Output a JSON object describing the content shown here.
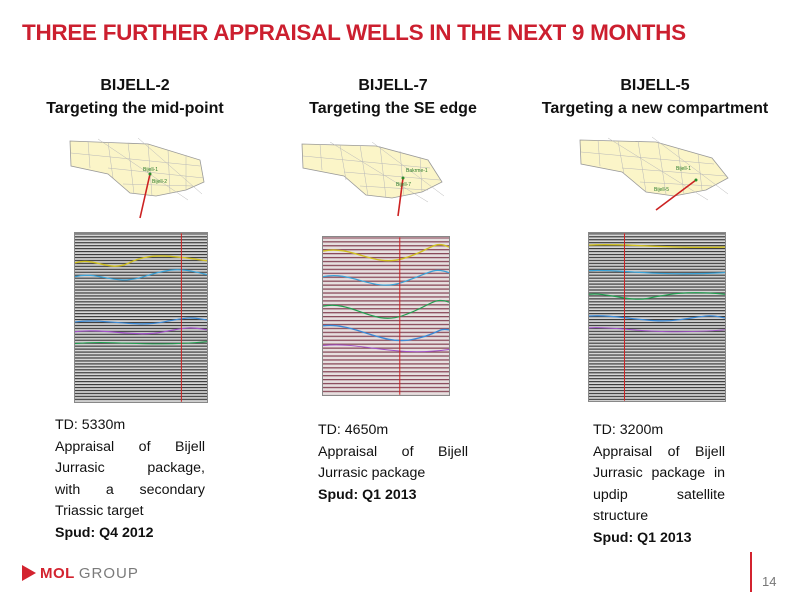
{
  "slide": {
    "title": "THREE FURTHER APPRAISAL WELLS IN THE NEXT 9 MONTHS",
    "page_number": "14"
  },
  "brand": {
    "part1": "MOL",
    "part2": "GROUP",
    "accent": "#d3232f"
  },
  "wells": [
    {
      "name": "BIJELL-2",
      "subtitle": "Targeting the mid-point",
      "td": "TD: 5330m",
      "description_lines": [
        "Appraisal of Bijell",
        "Jurrasic package,",
        "with a secondary",
        "Triassic target"
      ],
      "spud": "Spud: Q4 2012",
      "map_labels": [
        "Bijell-1",
        "Bijell-2"
      ]
    },
    {
      "name": "BIJELL-7",
      "subtitle": "Targeting the SE edge",
      "td": "TD: 4650m",
      "description_lines": [
        "Appraisal of Bijell",
        "Jurrasic package"
      ],
      "spud": "Spud:  Q1 2013",
      "map_labels": [
        "Bakrme-1",
        "Bijell-7"
      ]
    },
    {
      "name": "BIJELL-5",
      "subtitle": "Targeting a new compartment",
      "td": "TD: 3200m",
      "description_lines": [
        "Appraisal of Bijell",
        "Jurrasic package in",
        "updip satellite",
        "structure"
      ],
      "spud": "Spud: Q1 2013",
      "map_labels": [
        "Bijell-1",
        "Bijell-5"
      ]
    }
  ],
  "colors": {
    "title": "#cc1f2f",
    "map_fill": "#fbf5c8",
    "well_line": "#cc2222"
  }
}
